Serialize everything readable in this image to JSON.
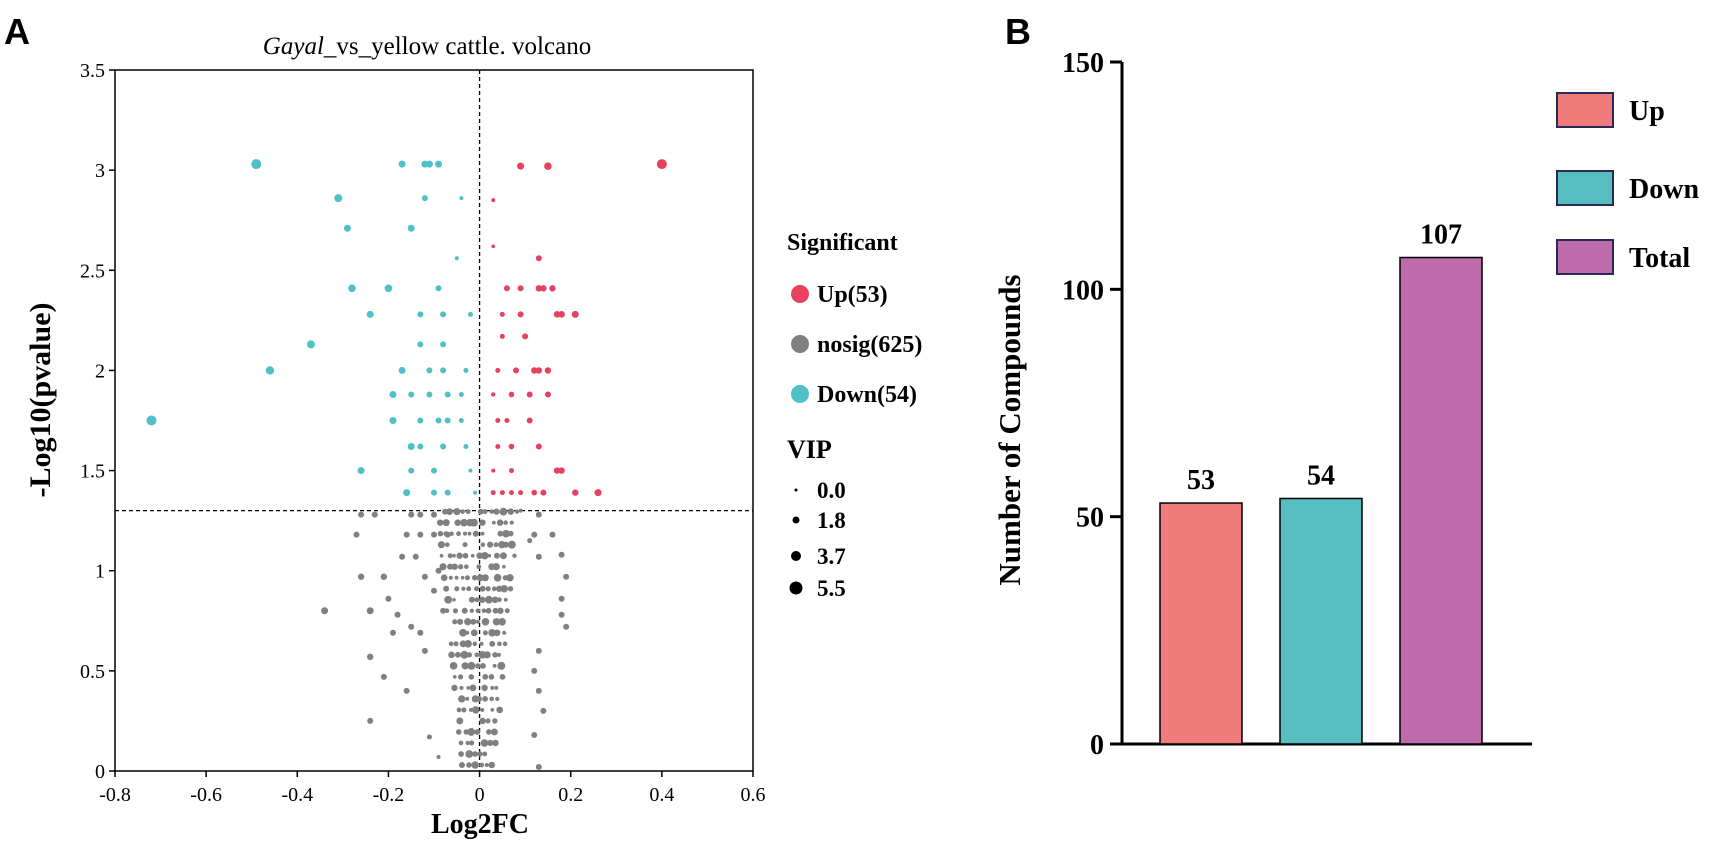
{
  "chart_data": [
    {
      "type": "scatter",
      "panel_label": "A",
      "title": {
        "italic": "Gayal",
        "rest": "_vs_yellow cattle. volcano"
      },
      "xlabel": "Log2FC",
      "ylabel": "-Log10(pvalue)",
      "xlim": [
        -0.8,
        0.6
      ],
      "ylim": [
        0,
        3.5
      ],
      "x_ticks": [
        "-0.8",
        "-0.6",
        "-0.4",
        "-0.2",
        "0",
        "0.2",
        "0.4",
        "0.6"
      ],
      "y_ticks": [
        "0",
        "0.5",
        "1",
        "1.5",
        "2",
        "2.5",
        "3",
        "3.5"
      ],
      "threshold_x": 0,
      "threshold_y": 1.3,
      "legend": {
        "title": "Significant",
        "items": [
          {
            "label": "Up(53)",
            "color": "#E8405F"
          },
          {
            "label": "nosig(625)",
            "color": "#808080"
          },
          {
            "label": "Down(54)",
            "color": "#4FC1C6"
          }
        ],
        "vip_title": "VIP",
        "vip_items": [
          "0.0",
          "1.8",
          "3.7",
          "5.5"
        ]
      },
      "series": [
        {
          "name": "Up",
          "color": "#E8405F",
          "points": [
            [
              0.4,
              3.03,
              5
            ],
            [
              0.09,
              3.02,
              3.5
            ],
            [
              0.15,
              3.02,
              3.8
            ],
            [
              0.03,
              2.85,
              2
            ],
            [
              0.03,
              2.62,
              1.8
            ],
            [
              0.13,
              2.56,
              3
            ],
            [
              0.06,
              2.41,
              3
            ],
            [
              0.09,
              2.41,
              3
            ],
            [
              0.13,
              2.41,
              3.2
            ],
            [
              0.14,
              2.41,
              3.2
            ],
            [
              0.16,
              2.41,
              3.2
            ],
            [
              0.05,
              2.28,
              2.5
            ],
            [
              0.09,
              2.28,
              3
            ],
            [
              0.17,
              2.28,
              3.3
            ],
            [
              0.18,
              2.28,
              3.3
            ],
            [
              0.21,
              2.28,
              3.5
            ],
            [
              0.05,
              2.17,
              2.5
            ],
            [
              0.1,
              2.17,
              3
            ],
            [
              0.04,
              2.0,
              2.5
            ],
            [
              0.08,
              2.0,
              3
            ],
            [
              0.12,
              2.0,
              3.2
            ],
            [
              0.13,
              2.0,
              3.2
            ],
            [
              0.15,
              2.0,
              3.2
            ],
            [
              0.03,
              1.88,
              2.2
            ],
            [
              0.07,
              1.88,
              2.8
            ],
            [
              0.11,
              1.88,
              3
            ],
            [
              0.15,
              1.88,
              3
            ],
            [
              0.04,
              1.75,
              2.5
            ],
            [
              0.06,
              1.75,
              2.5
            ],
            [
              0.11,
              1.75,
              3
            ],
            [
              0.04,
              1.62,
              2.5
            ],
            [
              0.07,
              1.62,
              2.8
            ],
            [
              0.13,
              1.62,
              3
            ],
            [
              0.03,
              1.5,
              2
            ],
            [
              0.07,
              1.5,
              2.5
            ],
            [
              0.17,
              1.5,
              3.2
            ],
            [
              0.18,
              1.5,
              3.2
            ],
            [
              0.03,
              1.39,
              2.5
            ],
            [
              0.05,
              1.39,
              2.5
            ],
            [
              0.07,
              1.39,
              2.5
            ],
            [
              0.09,
              1.39,
              2.5
            ],
            [
              0.12,
              1.39,
              2.8
            ],
            [
              0.14,
              1.39,
              3
            ],
            [
              0.21,
              1.39,
              3.2
            ],
            [
              0.26,
              1.39,
              3.5
            ]
          ]
        },
        {
          "name": "Down",
          "color": "#4FC1C6",
          "points": [
            [
              -0.49,
              3.03,
              5
            ],
            [
              -0.17,
              3.03,
              3.5
            ],
            [
              -0.12,
              3.03,
              3.5
            ],
            [
              -0.11,
              3.03,
              3.5
            ],
            [
              -0.09,
              3.03,
              3.5
            ],
            [
              -0.31,
              2.86,
              4
            ],
            [
              -0.12,
              2.86,
              3
            ],
            [
              -0.04,
              2.86,
              2
            ],
            [
              -0.29,
              2.71,
              3.5
            ],
            [
              -0.15,
              2.71,
              3.5
            ],
            [
              -0.05,
              2.56,
              2
            ],
            [
              -0.28,
              2.41,
              3.8
            ],
            [
              -0.2,
              2.41,
              3.8
            ],
            [
              -0.09,
              2.41,
              3
            ],
            [
              -0.24,
              2.28,
              3.5
            ],
            [
              -0.13,
              2.28,
              3
            ],
            [
              -0.08,
              2.28,
              3
            ],
            [
              -0.02,
              2.28,
              2.5
            ],
            [
              -0.37,
              2.13,
              4
            ],
            [
              -0.13,
              2.13,
              3
            ],
            [
              -0.08,
              2.13,
              3
            ],
            [
              -0.46,
              2.0,
              4.2
            ],
            [
              -0.17,
              2.0,
              3.5
            ],
            [
              -0.11,
              2.0,
              3
            ],
            [
              -0.08,
              2.0,
              3
            ],
            [
              -0.03,
              2.0,
              2.5
            ],
            [
              -0.19,
              1.88,
              3.5
            ],
            [
              -0.15,
              1.88,
              3
            ],
            [
              -0.11,
              1.88,
              3
            ],
            [
              -0.07,
              1.88,
              3
            ],
            [
              -0.04,
              1.88,
              2.5
            ],
            [
              -0.72,
              1.75,
              5
            ],
            [
              -0.19,
              1.75,
              3.5
            ],
            [
              -0.13,
              1.75,
              3
            ],
            [
              -0.09,
              1.75,
              3
            ],
            [
              -0.07,
              1.75,
              3
            ],
            [
              -0.04,
              1.75,
              2.5
            ],
            [
              -0.15,
              1.62,
              3.5
            ],
            [
              -0.13,
              1.62,
              3
            ],
            [
              -0.08,
              1.62,
              3
            ],
            [
              -0.03,
              1.62,
              2.5
            ],
            [
              -0.26,
              1.5,
              3.5
            ],
            [
              -0.15,
              1.5,
              3
            ],
            [
              -0.1,
              1.5,
              3
            ],
            [
              -0.02,
              1.5,
              2
            ],
            [
              -0.16,
              1.39,
              3.5
            ],
            [
              -0.1,
              1.39,
              3
            ],
            [
              -0.07,
              1.39,
              3
            ],
            [
              -0.01,
              1.39,
              2
            ]
          ]
        },
        {
          "name": "nosig",
          "color": "#808080",
          "points": [
            [
              -0.34,
              0.8,
              3.5
            ],
            [
              -0.24,
              0.8,
              3.5
            ],
            [
              -0.26,
              0.97,
              3.2
            ],
            [
              -0.21,
              0.97,
              3.2
            ],
            [
              -0.24,
              0.57,
              3.2
            ],
            [
              -0.21,
              0.47,
              3
            ],
            [
              -0.24,
              0.25,
              3
            ],
            [
              -0.2,
              0.86,
              3
            ],
            [
              -0.19,
              0.69,
              3
            ],
            [
              -0.18,
              0.78,
              3
            ],
            [
              -0.16,
              0.4,
              3
            ],
            [
              -0.15,
              0.72,
              3
            ],
            [
              -0.13,
              0.69,
              3
            ],
            [
              -0.12,
              0.6,
              3
            ],
            [
              -0.11,
              0.17,
              2.5
            ],
            [
              -0.09,
              0.07,
              2
            ],
            [
              -0.1,
              0.9,
              3
            ],
            [
              -0.08,
              0.8,
              3
            ],
            [
              -0.17,
              1.07,
              3
            ],
            [
              -0.14,
              1.07,
              3
            ],
            [
              -0.1,
              1.18,
              3
            ],
            [
              -0.07,
              1.18,
              3
            ],
            [
              -0.15,
              1.28,
              3
            ],
            [
              -0.13,
              1.28,
              3
            ],
            [
              -0.1,
              1.28,
              3
            ],
            [
              -0.23,
              1.28,
              3
            ],
            [
              -0.26,
              1.28,
              3
            ],
            [
              -0.27,
              1.18,
              3
            ],
            [
              -0.16,
              1.18,
              3
            ],
            [
              -0.13,
              1.18,
              3
            ],
            [
              -0.12,
              0.97,
              3
            ],
            [
              -0.09,
              1.0,
              3
            ],
            [
              0.13,
              1.28,
              3
            ],
            [
              0.12,
              1.18,
              3
            ],
            [
              0.16,
              1.18,
              3
            ],
            [
              0.13,
              1.07,
              3
            ],
            [
              0.18,
              1.08,
              3
            ],
            [
              0.19,
              0.97,
              3
            ],
            [
              0.18,
              0.86,
              3
            ],
            [
              0.18,
              0.78,
              3
            ],
            [
              0.19,
              0.72,
              3
            ],
            [
              0.13,
              0.6,
              3
            ],
            [
              0.12,
              0.5,
              3
            ],
            [
              0.13,
              0.4,
              3
            ],
            [
              0.12,
              0.18,
              3
            ],
            [
              0.13,
              0.02,
              3
            ],
            [
              0.14,
              0.3,
              3
            ],
            [
              0.09,
              1.3,
              2
            ],
            [
              0.11,
              1.15,
              2.5
            ]
          ],
          "dense_column": {
            "x_min": -0.09,
            "x_max": 0.1,
            "y_min": 0.0,
            "y_max": 1.3
          }
        }
      ]
    },
    {
      "type": "bar",
      "panel_label": "B",
      "categories": [
        "Up",
        "Down",
        "Total"
      ],
      "values": [
        53,
        54,
        107
      ],
      "value_labels": [
        "53",
        "54",
        "107"
      ],
      "colors": [
        "#EF7B7A",
        "#56BEBE",
        "#BD6BAA"
      ],
      "ylabel": "Number of Compounds",
      "ylim": [
        0,
        150
      ],
      "y_ticks": [
        "0",
        "50",
        "100",
        "150"
      ],
      "legend": {
        "items": [
          {
            "label": "Up",
            "color": "#EF7B7A"
          },
          {
            "label": "Down",
            "color": "#56BEBE"
          },
          {
            "label": "Total",
            "color": "#BD6BAA"
          }
        ]
      }
    }
  ]
}
